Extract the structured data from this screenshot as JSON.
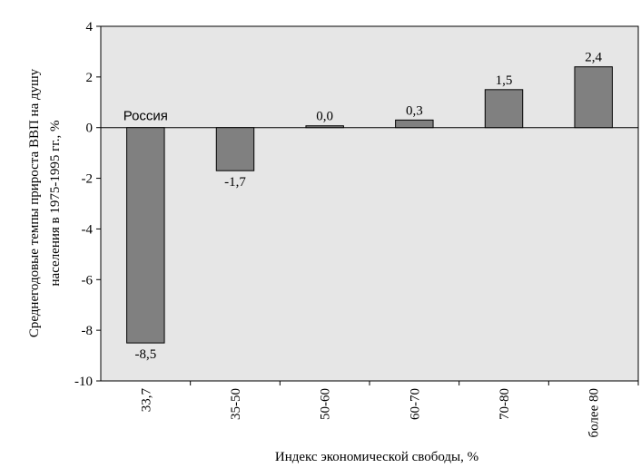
{
  "chart_data": {
    "type": "bar",
    "categories": [
      "33,7",
      "35-50",
      "50-60",
      "60-70",
      "70-80",
      "более 80"
    ],
    "values": [
      -8.5,
      -1.7,
      0.0,
      0.3,
      1.5,
      2.4
    ],
    "data_labels": [
      "-8,5",
      "-1,7",
      "0,0",
      "0,3",
      "1,5",
      "2,4"
    ],
    "xlabel": "Индекс экономической свободы, %",
    "ylabel_lines": [
      "Среднегодовые темпы прироста ВВП на душу",
      "населения в 1975-1995 гг., %"
    ],
    "ylim": [
      -10,
      4
    ],
    "yticks": [
      4,
      2,
      0,
      -2,
      -4,
      -6,
      -8,
      -10
    ],
    "ytick_labels": [
      "4",
      "2",
      "0",
      "-2",
      "-4",
      "-6",
      "-8",
      "-10"
    ],
    "annotation": "Россия",
    "annotation_category": 0,
    "grid": false,
    "colors": {
      "plot_background": "#e6e6e6",
      "bar_fill": "#808080",
      "bar_stroke": "#000000"
    }
  }
}
